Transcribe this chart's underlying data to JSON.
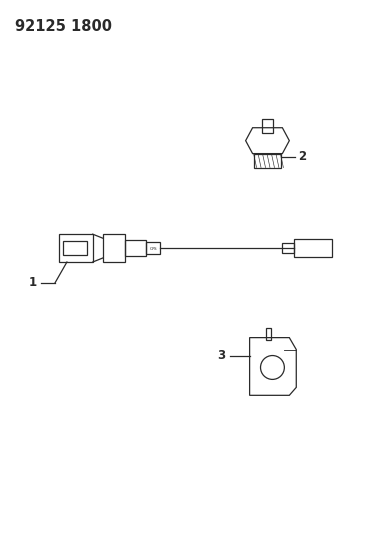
{
  "title": "92125 1800",
  "bg_color": "#ffffff",
  "line_color": "#2a2a2a",
  "title_fontsize": 10.5,
  "label_fontsize": 8.5,
  "fig_width": 3.9,
  "fig_height": 5.33,
  "part1_label": "1",
  "part2_label": "2",
  "part3_label": "3",
  "lw": 0.9
}
